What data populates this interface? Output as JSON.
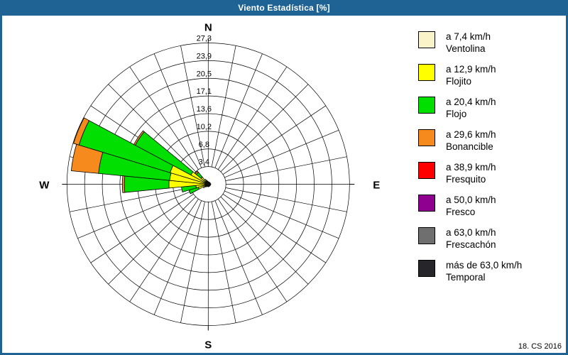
{
  "window": {
    "title": "Viento Estadística [%]",
    "footer": "18. CS 2016"
  },
  "colors": {
    "title_bar": "#1F6394",
    "window_border": "#1F6394",
    "background": "#FFFFFF",
    "grid": "#000000"
  },
  "chart_data": {
    "type": "bar",
    "variant": "windrose-polar-stacked",
    "units": "%",
    "sectors": 32,
    "grid": "on",
    "legend_position": "right",
    "radial_axis": {
      "max": 27.3,
      "ticks": [
        3.4,
        6.8,
        10.2,
        13.6,
        17.1,
        20.5,
        23.9,
        27.3
      ],
      "tick_labels": [
        "3,4",
        "6,8",
        "10,2",
        "13,6",
        "17,1",
        "20,5",
        "23,9",
        "27,3"
      ]
    },
    "compass_labels": {
      "n": "N",
      "e": "E",
      "s": "S",
      "w": "W"
    },
    "directions": [
      "N",
      "NbE",
      "NNE",
      "NEbN",
      "NE",
      "NEbE",
      "ENE",
      "EbN",
      "E",
      "EbS",
      "ESE",
      "SEbE",
      "SE",
      "SEbS",
      "SSE",
      "SbE",
      "S",
      "SbW",
      "SSW",
      "SWbS",
      "SW",
      "SWbW",
      "WSW",
      "WbS",
      "W",
      "WbN",
      "WNW",
      "NWbW",
      "NW",
      "NWbN",
      "NNW",
      "NbW"
    ],
    "series": [
      {
        "name": "Ventolina",
        "speed_label": "a 7,4 km/h",
        "color": "#FAF3C9",
        "values": [
          0.1,
          0.1,
          0.1,
          0.1,
          0.1,
          0.1,
          0.1,
          0.1,
          0.1,
          0.1,
          0.1,
          0.1,
          0.1,
          0.1,
          0.1,
          0.1,
          0.1,
          0.1,
          0.1,
          0.1,
          0.2,
          0.1,
          0.2,
          0.2,
          0.3,
          0.3,
          0.4,
          0.3,
          0.2,
          0.1,
          0.1,
          0.1
        ]
      },
      {
        "name": "Flojito",
        "speed_label": "a 12,9 km/h",
        "color": "#FFFF00",
        "values": [
          0.4,
          0.3,
          0.3,
          0.2,
          0.3,
          0.2,
          0.3,
          0.2,
          0.4,
          0.2,
          0.3,
          0.2,
          0.3,
          0.2,
          0.3,
          0.2,
          0.4,
          0.2,
          0.3,
          0.4,
          0.5,
          1.0,
          1.8,
          2.2,
          7.3,
          7.2,
          7.3,
          3.5,
          1.6,
          1.0,
          0.7,
          0.5
        ]
      },
      {
        "name": "Flojo",
        "speed_label": "a 20,4 km/h",
        "color": "#00DF00",
        "values": [
          0,
          0,
          0,
          0,
          0,
          0,
          0,
          0,
          0,
          0,
          0,
          0,
          0,
          0,
          0,
          0,
          0,
          0,
          0,
          0,
          0,
          0,
          1.9,
          2.8,
          8.6,
          13.8,
          18.4,
          12.2,
          1.2,
          0,
          0,
          0
        ]
      },
      {
        "name": "Bonancible",
        "speed_label": "a 29,6 km/h",
        "color": "#F78A1D",
        "values": [
          0,
          0,
          0,
          0,
          0,
          0,
          0,
          0,
          0,
          0,
          0,
          0,
          0,
          0,
          0,
          0,
          0,
          0,
          0,
          0,
          0,
          0,
          0,
          0,
          0.4,
          5.3,
          1.1,
          0.3,
          0.3,
          0,
          0,
          0
        ]
      },
      {
        "name": "Fresquito",
        "speed_label": "a 38,9 km/h",
        "color": "#FF0000",
        "values": [
          0,
          0,
          0,
          0,
          0,
          0,
          0,
          0,
          0,
          0,
          0,
          0,
          0,
          0,
          0,
          0,
          0,
          0,
          0,
          0,
          0,
          0,
          0,
          0,
          0,
          0,
          0,
          0,
          0,
          0,
          0,
          0
        ]
      },
      {
        "name": "Fresco",
        "speed_label": "a 50,0 km/h",
        "color": "#900090",
        "values": [
          0,
          0,
          0,
          0,
          0,
          0,
          0,
          0,
          0,
          0,
          0,
          0,
          0,
          0,
          0,
          0,
          0,
          0,
          0,
          0,
          0,
          0,
          0,
          0,
          0,
          0,
          0,
          0,
          0,
          0,
          0,
          0
        ]
      },
      {
        "name": "Frescachón",
        "speed_label": "a 63,0 km/h",
        "color": "#6F6F6F",
        "values": [
          0,
          0,
          0,
          0,
          0,
          0,
          0,
          0,
          0,
          0,
          0,
          0,
          0,
          0,
          0,
          0,
          0,
          0,
          0,
          0,
          0,
          0,
          0,
          0,
          0,
          0,
          0,
          0,
          0,
          0,
          0,
          0
        ]
      },
      {
        "name": "Temporal",
        "speed_label": "más de 63,0 km/h",
        "color": "#25252A",
        "values": [
          0,
          0,
          0,
          0,
          0,
          0,
          0,
          0,
          0,
          0,
          0,
          0,
          0,
          0,
          0,
          0,
          0,
          0,
          0,
          0,
          0,
          0,
          0,
          0,
          0,
          0,
          0,
          0,
          0,
          0,
          0,
          0
        ]
      }
    ]
  }
}
